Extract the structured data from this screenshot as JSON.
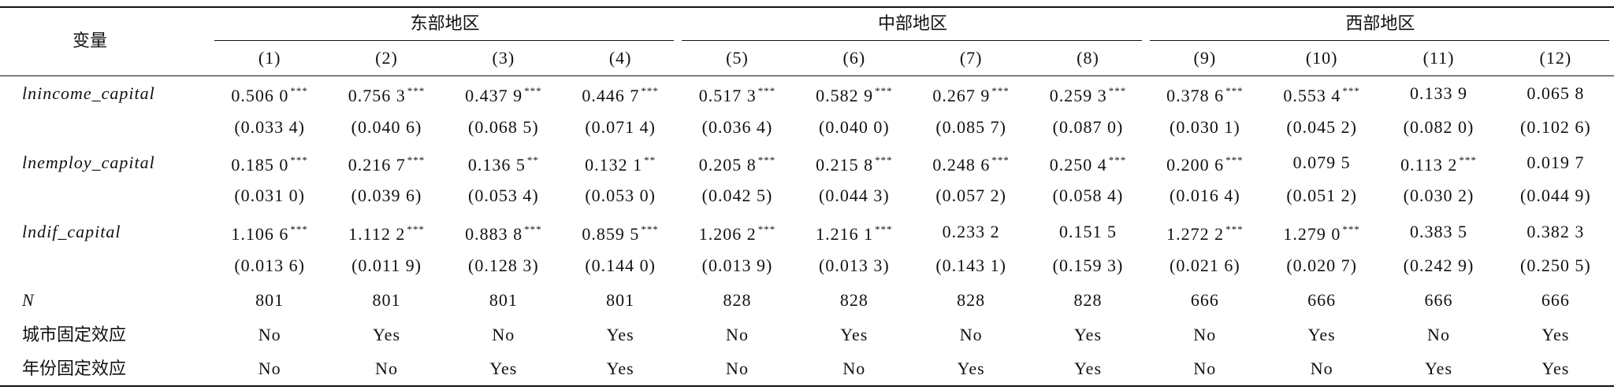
{
  "table": {
    "header": {
      "var": "变量",
      "groups": [
        "东部地区",
        "中部地区",
        "西部地区"
      ],
      "columns": [
        "(1)",
        "(2)",
        "(3)",
        "(4)",
        "(5)",
        "(6)",
        "(7)",
        "(8)",
        "(9)",
        "(10)",
        "(11)",
        "(12)"
      ]
    },
    "rows": [
      {
        "label": "lnincome_capital",
        "italic": true,
        "cells": [
          {
            "value": "0.506 0",
            "stars": "***"
          },
          {
            "value": "0.756 3",
            "stars": "***"
          },
          {
            "value": "0.437 9",
            "stars": "***"
          },
          {
            "value": "0.446 7",
            "stars": "***"
          },
          {
            "value": "0.517 3",
            "stars": "***"
          },
          {
            "value": "0.582 9",
            "stars": "***"
          },
          {
            "value": "0.267 9",
            "stars": "***"
          },
          {
            "value": "0.259 3",
            "stars": "***"
          },
          {
            "value": "0.378 6",
            "stars": "***"
          },
          {
            "value": "0.553 4",
            "stars": "***"
          },
          {
            "value": "0.133 9"
          },
          {
            "value": "0.065 8"
          }
        ]
      },
      {
        "cells": [
          {
            "value": "(0.033 4)"
          },
          {
            "value": "(0.040 6)"
          },
          {
            "value": "(0.068 5)"
          },
          {
            "value": "(0.071 4)"
          },
          {
            "value": "(0.036 4)"
          },
          {
            "value": "(0.040 0)"
          },
          {
            "value": "(0.085 7)"
          },
          {
            "value": "(0.087 0)"
          },
          {
            "value": "(0.030 1)"
          },
          {
            "value": "(0.045 2)"
          },
          {
            "value": "(0.082 0)"
          },
          {
            "value": "(0.102 6)"
          }
        ]
      },
      {
        "label": "lnemploy_capital",
        "italic": true,
        "cells": [
          {
            "value": "0.185 0",
            "stars": "***"
          },
          {
            "value": "0.216 7",
            "stars": "***"
          },
          {
            "value": "0.136 5",
            "stars": "**"
          },
          {
            "value": "0.132 1",
            "stars": "**"
          },
          {
            "value": "0.205 8",
            "stars": "***"
          },
          {
            "value": "0.215 8",
            "stars": "***"
          },
          {
            "value": "0.248 6",
            "stars": "***"
          },
          {
            "value": "0.250 4",
            "stars": "***"
          },
          {
            "value": "0.200 6",
            "stars": "***"
          },
          {
            "value": "0.079 5"
          },
          {
            "value": "0.113 2",
            "stars": "***"
          },
          {
            "value": "0.019 7"
          }
        ]
      },
      {
        "cells": [
          {
            "value": "(0.031 0)"
          },
          {
            "value": "(0.039 6)"
          },
          {
            "value": "(0.053 4)"
          },
          {
            "value": "(0.053 0)"
          },
          {
            "value": "(0.042 5)"
          },
          {
            "value": "(0.044 3)"
          },
          {
            "value": "(0.057 2)"
          },
          {
            "value": "(0.058 4)"
          },
          {
            "value": "(0.016 4)"
          },
          {
            "value": "(0.051 2)"
          },
          {
            "value": "(0.030 2)"
          },
          {
            "value": "(0.044 9)"
          }
        ]
      },
      {
        "label": "lndif_capital",
        "italic": true,
        "cells": [
          {
            "value": "1.106 6",
            "stars": "***"
          },
          {
            "value": "1.112 2",
            "stars": "***"
          },
          {
            "value": "0.883 8",
            "stars": "***"
          },
          {
            "value": "0.859 5",
            "stars": "***"
          },
          {
            "value": "1.206 2",
            "stars": "***"
          },
          {
            "value": "1.216 1",
            "stars": "***"
          },
          {
            "value": "0.233 2"
          },
          {
            "value": "0.151 5"
          },
          {
            "value": "1.272 2",
            "stars": "***"
          },
          {
            "value": "1.279 0",
            "stars": "***"
          },
          {
            "value": "0.383 5"
          },
          {
            "value": "0.382 3"
          }
        ]
      },
      {
        "cells": [
          {
            "value": "(0.013 6)"
          },
          {
            "value": "(0.011 9)"
          },
          {
            "value": "(0.128 3)"
          },
          {
            "value": "(0.144 0)"
          },
          {
            "value": "(0.013 9)"
          },
          {
            "value": "(0.013 3)"
          },
          {
            "value": "(0.143 1)"
          },
          {
            "value": "(0.159 3)"
          },
          {
            "value": "(0.021 6)"
          },
          {
            "value": "(0.020 7)"
          },
          {
            "value": "(0.242 9)"
          },
          {
            "value": "(0.250 5)"
          }
        ]
      },
      {
        "label": "N",
        "italic": true,
        "cells": [
          {
            "value": "801"
          },
          {
            "value": "801"
          },
          {
            "value": "801"
          },
          {
            "value": "801"
          },
          {
            "value": "828"
          },
          {
            "value": "828"
          },
          {
            "value": "828"
          },
          {
            "value": "828"
          },
          {
            "value": "666"
          },
          {
            "value": "666"
          },
          {
            "value": "666"
          },
          {
            "value": "666"
          }
        ]
      },
      {
        "label": "城市固定效应",
        "cells": [
          {
            "value": "No"
          },
          {
            "value": "Yes"
          },
          {
            "value": "No"
          },
          {
            "value": "Yes"
          },
          {
            "value": "No"
          },
          {
            "value": "Yes"
          },
          {
            "value": "No"
          },
          {
            "value": "Yes"
          },
          {
            "value": "No"
          },
          {
            "value": "Yes"
          },
          {
            "value": "No"
          },
          {
            "value": "Yes"
          }
        ]
      },
      {
        "label": "年份固定效应",
        "cells": [
          {
            "value": "No"
          },
          {
            "value": "No"
          },
          {
            "value": "Yes"
          },
          {
            "value": "Yes"
          },
          {
            "value": "No"
          },
          {
            "value": "No"
          },
          {
            "value": "Yes"
          },
          {
            "value": "Yes"
          },
          {
            "value": "No"
          },
          {
            "value": "No"
          },
          {
            "value": "Yes"
          },
          {
            "value": "Yes"
          }
        ]
      }
    ]
  }
}
